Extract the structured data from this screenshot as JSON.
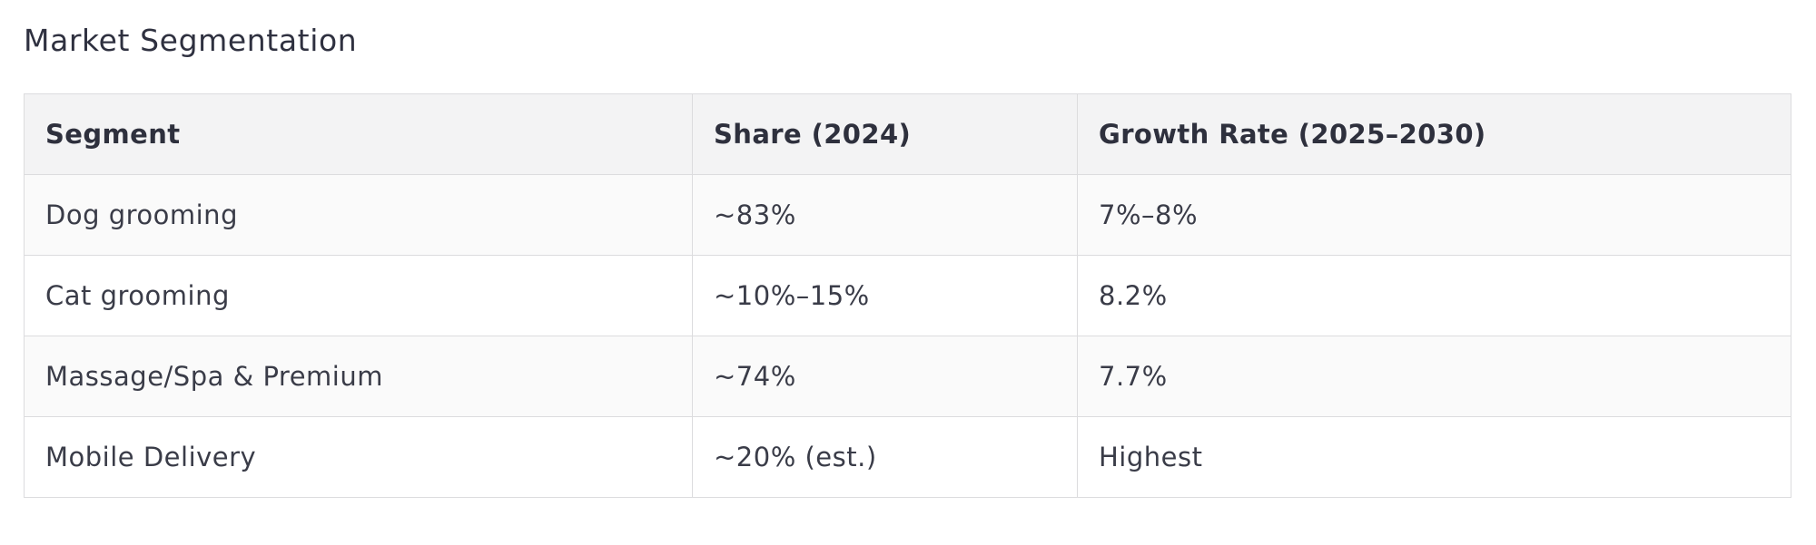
{
  "section": {
    "title": "Market Segmentation"
  },
  "table": {
    "headers": [
      "Segment",
      "Share (2024)",
      "Growth Rate (2025–2030)"
    ],
    "rows": [
      [
        "Dog grooming",
        "~83%",
        "7%–8%"
      ],
      [
        "Cat grooming",
        "~10%–15%",
        "8.2%"
      ],
      [
        "Massage/Spa & Premium",
        "~74%",
        "7.7%"
      ],
      [
        "Mobile Delivery",
        "~20% (est.)",
        "Highest"
      ]
    ]
  }
}
